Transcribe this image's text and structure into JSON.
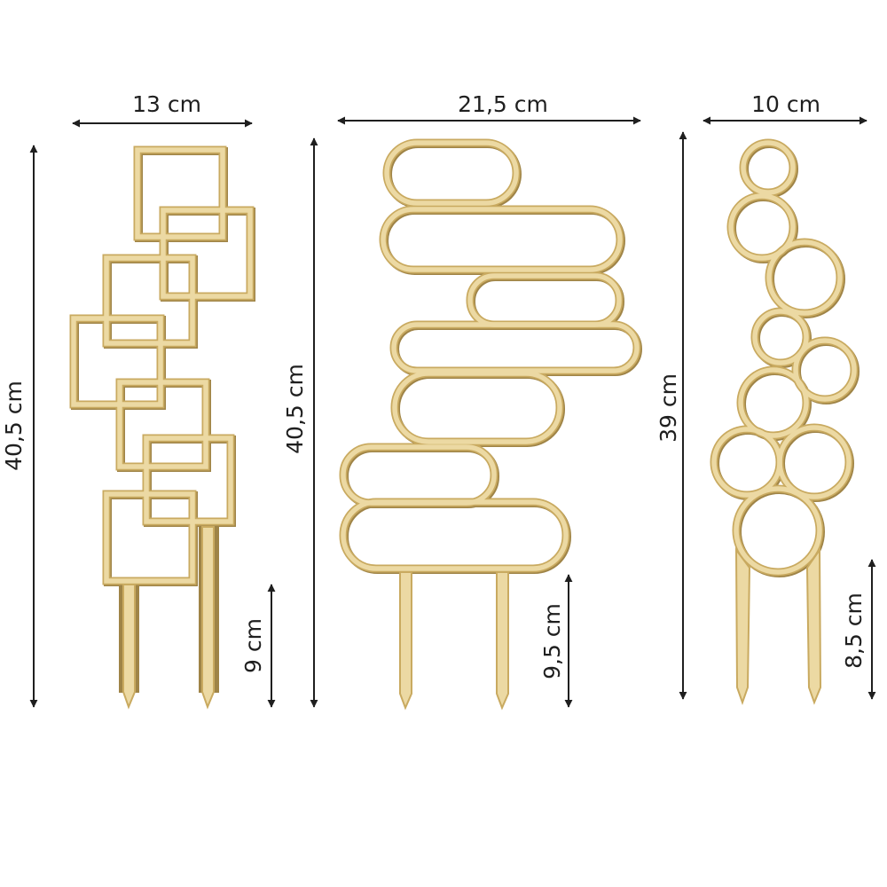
{
  "trellises": [
    {
      "shape": "squares",
      "width_label": "13 cm",
      "height_label": "40,5 cm",
      "stake_label": "9 cm"
    },
    {
      "shape": "rounded-bars",
      "width_label": "21,5 cm",
      "height_label": "40,5 cm",
      "stake_label": "9,5 cm"
    },
    {
      "shape": "circles",
      "width_label": "10 cm",
      "height_label": "39 cm",
      "stake_label": "8,5 cm"
    }
  ],
  "colors": {
    "wood_fill": "#ecd9a3",
    "wood_edge": "#c9aa60",
    "wood_shadow": "#9f8447",
    "dimension_line": "#1f1f1f"
  }
}
